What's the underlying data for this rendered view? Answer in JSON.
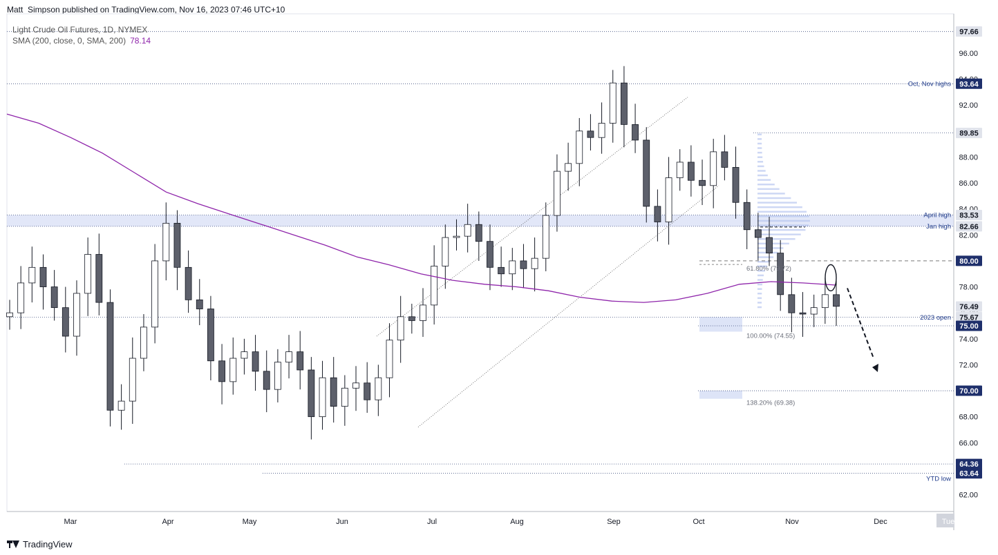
{
  "header": {
    "credit": "Matt_Simpson published on TradingView.com, Nov 16, 2023 07:46 UTC+10"
  },
  "legend": {
    "symbol": "Light Crude Oil Futures, 1D, NYMEX",
    "sma_label": "SMA (200, close, 0, SMA, 200)",
    "sma_value": "78.14"
  },
  "footer": {
    "brand": "TradingView"
  },
  "colors": {
    "candle_body": "#5d606b",
    "candle_outline": "#131722",
    "sma": "#8e24aa",
    "zone": "#d5ddf5",
    "label_bg": "#131722",
    "blue_label_bg": "#1e2f6b",
    "annotation_text": "#1e3a8a"
  },
  "chart_data": {
    "type": "candlestick",
    "title": "",
    "y_axis_ticks": [
      "62.00",
      "64.00",
      "66.00",
      "68.00",
      "70.00",
      "72.00",
      "74.00",
      "76.00",
      "78.00",
      "80.00",
      "82.00",
      "84.00",
      "86.00",
      "88.00",
      "90.00",
      "92.00",
      "94.00",
      "96.00",
      "97.66"
    ],
    "x_axis_ticks": [
      "Mar",
      "Apr",
      "May",
      "Jun",
      "Jul",
      "Aug",
      "Sep",
      "Oct",
      "Nov",
      "Dec",
      "Tue"
    ],
    "ylim": [
      60.7,
      98.6
    ],
    "price_labels": [
      {
        "value": 97.66,
        "text": "97.66",
        "style": "light"
      },
      {
        "value": 93.64,
        "text": "93.64",
        "style": "dark"
      },
      {
        "value": 89.85,
        "text": "89.85",
        "style": "light"
      },
      {
        "value": 83.53,
        "text": "83.53",
        "style": "light"
      },
      {
        "value": 82.66,
        "text": "82.66",
        "style": "light"
      },
      {
        "value": 80.0,
        "text": "80.00",
        "style": "dark"
      },
      {
        "value": 76.49,
        "text": "76.49",
        "style": "light"
      },
      {
        "value": 75.67,
        "text": "75.67",
        "style": "light"
      },
      {
        "value": 75.0,
        "text": "75.00",
        "style": "dark"
      },
      {
        "value": 70.0,
        "text": "70.00",
        "style": "dark"
      },
      {
        "value": 64.36,
        "text": "64.36",
        "style": "dark"
      },
      {
        "value": 63.64,
        "text": "63.64",
        "style": "dark"
      }
    ],
    "annotations": [
      {
        "text": "Oct, Nov highs",
        "value": 93.64
      },
      {
        "text": "April high",
        "value": 83.53
      },
      {
        "text": "Jan high",
        "value": 82.66
      },
      {
        "text": "2023 open",
        "value": 75.67
      },
      {
        "text": "YTD low",
        "value": 63.64
      },
      {
        "text": "61.80% (79.72)",
        "value": 79.72
      },
      {
        "text": "100.00% (74.55)",
        "value": 74.55
      },
      {
        "text": "138.20% (69.38)",
        "value": 69.38
      }
    ],
    "sma_200": [
      91.3,
      90.6,
      89.5,
      88.3,
      86.8,
      85.3,
      84.4,
      83.6,
      82.8,
      82.0,
      81.2,
      80.3,
      79.7,
      79.0,
      78.5,
      78.2,
      78.0,
      77.7,
      77.2,
      76.9,
      76.8,
      77.0,
      77.5,
      78.2,
      78.4,
      78.3,
      78.14
    ],
    "closes_approx": [
      76.0,
      78.3,
      79.5,
      78.0,
      76.4,
      74.2,
      77.5,
      80.5,
      76.8,
      68.5,
      69.2,
      72.5,
      74.9,
      80.0,
      82.9,
      79.5,
      77.0,
      76.3,
      72.3,
      70.7,
      72.5,
      73.0,
      71.5,
      70.1,
      72.2,
      73.0,
      71.6,
      68.0,
      71.0,
      68.8,
      70.2,
      70.6,
      69.3,
      71.0,
      73.9,
      75.7,
      75.4,
      76.6,
      79.6,
      81.8,
      81.9,
      82.8,
      81.5,
      79.5,
      79.0,
      80.0,
      79.4,
      80.2,
      83.5,
      86.9,
      87.5,
      90.0,
      89.5,
      90.6,
      93.7,
      90.5,
      89.3,
      84.2,
      83.0,
      86.4,
      87.6,
      86.2,
      85.8,
      88.4,
      87.2,
      84.5,
      82.4,
      81.8,
      80.6,
      77.4,
      76.0,
      75.9,
      76.4,
      77.4,
      76.5
    ]
  }
}
